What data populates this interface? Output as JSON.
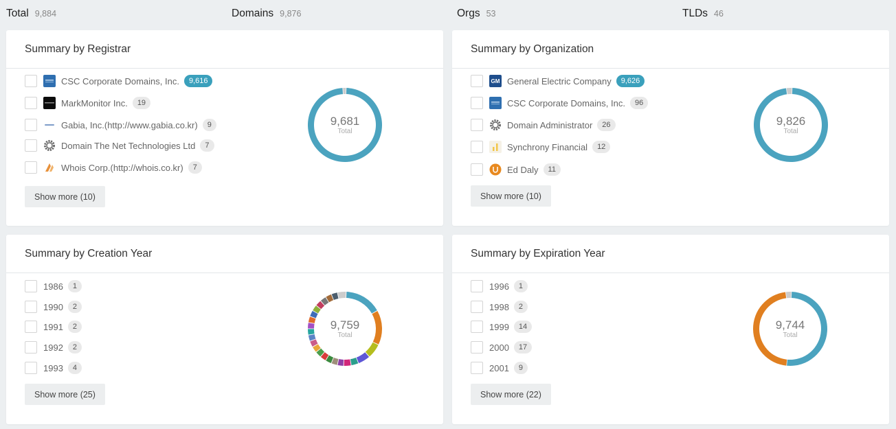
{
  "stats": [
    {
      "label": "Total",
      "value": "9,884"
    },
    {
      "label": "Domains",
      "value": "9,876"
    },
    {
      "label": "Orgs",
      "value": "53"
    },
    {
      "label": "TLDs",
      "value": "46"
    }
  ],
  "registrar": {
    "title": "Summary by Registrar",
    "items": [
      {
        "label": "CSC Corporate Domains, Inc.",
        "count": "9,616",
        "logo": "csc-logo-icon"
      },
      {
        "label": "MarkMonitor Inc.",
        "count": "19",
        "logo": "markmonitor-logo-icon"
      },
      {
        "label": "Gabia, Inc.(http://www.gabia.co.kr)",
        "count": "9",
        "logo": "gabia-logo-icon"
      },
      {
        "label": "Domain The Net Technologies Ltd",
        "count": "7",
        "logo": "gear-icon"
      },
      {
        "label": "Whois Corp.(http://whois.co.kr)",
        "count": "7",
        "logo": "whois-logo-icon"
      }
    ],
    "show_more": "Show more (10)",
    "total": "9,681",
    "total_label": "Total"
  },
  "organization": {
    "title": "Summary by Organization",
    "items": [
      {
        "label": "General Electric Company",
        "count": "9,626",
        "logo": "gm-logo-icon"
      },
      {
        "label": "CSC Corporate Domains, Inc.",
        "count": "96",
        "logo": "csc-logo-icon"
      },
      {
        "label": "Domain Administrator",
        "count": "26",
        "logo": "gear-icon"
      },
      {
        "label": "Synchrony Financial",
        "count": "12",
        "logo": "synchrony-logo-icon"
      },
      {
        "label": "Ed Daly",
        "count": "11",
        "logo": "ed-daly-logo-icon"
      }
    ],
    "show_more": "Show more (10)",
    "total": "9,826",
    "total_label": "Total"
  },
  "creation": {
    "title": "Summary by Creation Year",
    "items": [
      {
        "label": "1986",
        "count": "1"
      },
      {
        "label": "1990",
        "count": "2"
      },
      {
        "label": "1991",
        "count": "2"
      },
      {
        "label": "1992",
        "count": "2"
      },
      {
        "label": "1993",
        "count": "4"
      }
    ],
    "show_more": "Show more (25)",
    "total": "9,759",
    "total_label": "Total"
  },
  "expiration": {
    "title": "Summary by Expiration Year",
    "items": [
      {
        "label": "1996",
        "count": "1"
      },
      {
        "label": "1998",
        "count": "2"
      },
      {
        "label": "1999",
        "count": "14"
      },
      {
        "label": "2000",
        "count": "17"
      },
      {
        "label": "2001",
        "count": "9"
      }
    ],
    "show_more": "Show more (22)",
    "total": "9,744",
    "total_label": "Total"
  },
  "donuts": {
    "registrar": [
      {
        "value": 98.5,
        "color": "#4ba3bf"
      },
      {
        "value": 1.5,
        "color": "#cccccc"
      }
    ],
    "organization": [
      {
        "value": 97.5,
        "color": "#4ba3bf"
      },
      {
        "value": 2.5,
        "color": "#cccccc"
      }
    ],
    "creation": [
      {
        "value": 15,
        "color": "#4ba3bf"
      },
      {
        "value": 14,
        "color": "#e07f20"
      },
      {
        "value": 6,
        "color": "#b5bd1e"
      },
      {
        "value": 5,
        "color": "#5e57d6"
      },
      {
        "value": 3,
        "color": "#2b9e8c"
      },
      {
        "value": 3,
        "color": "#d1287a"
      },
      {
        "value": 2.5,
        "color": "#8e3fa7"
      },
      {
        "value": 2.5,
        "color": "#9e8f7a"
      },
      {
        "value": 2.5,
        "color": "#3b8a3e"
      },
      {
        "value": 2.5,
        "color": "#d93b3b"
      },
      {
        "value": 2.5,
        "color": "#4b9e4b"
      },
      {
        "value": 2.5,
        "color": "#e8a63a"
      },
      {
        "value": 2.5,
        "color": "#c95c8a"
      },
      {
        "value": 2.5,
        "color": "#5b84c6"
      },
      {
        "value": 2.5,
        "color": "#27a6a0"
      },
      {
        "value": 2.5,
        "color": "#a44fc4"
      },
      {
        "value": 2.5,
        "color": "#e06a2b"
      },
      {
        "value": 2.5,
        "color": "#3e6bb8"
      },
      {
        "value": 2.5,
        "color": "#8fb03a"
      },
      {
        "value": 2.5,
        "color": "#c23d5e"
      },
      {
        "value": 2.5,
        "color": "#777777"
      },
      {
        "value": 2.5,
        "color": "#a26b3a"
      },
      {
        "value": 2.5,
        "color": "#4c5e6e"
      },
      {
        "value": 3.5,
        "color": "#cccccc"
      }
    ],
    "expiration": [
      {
        "value": 51,
        "color": "#4ba3bf"
      },
      {
        "value": 46.5,
        "color": "#e07f20"
      },
      {
        "value": 2.5,
        "color": "#cccccc"
      }
    ]
  }
}
